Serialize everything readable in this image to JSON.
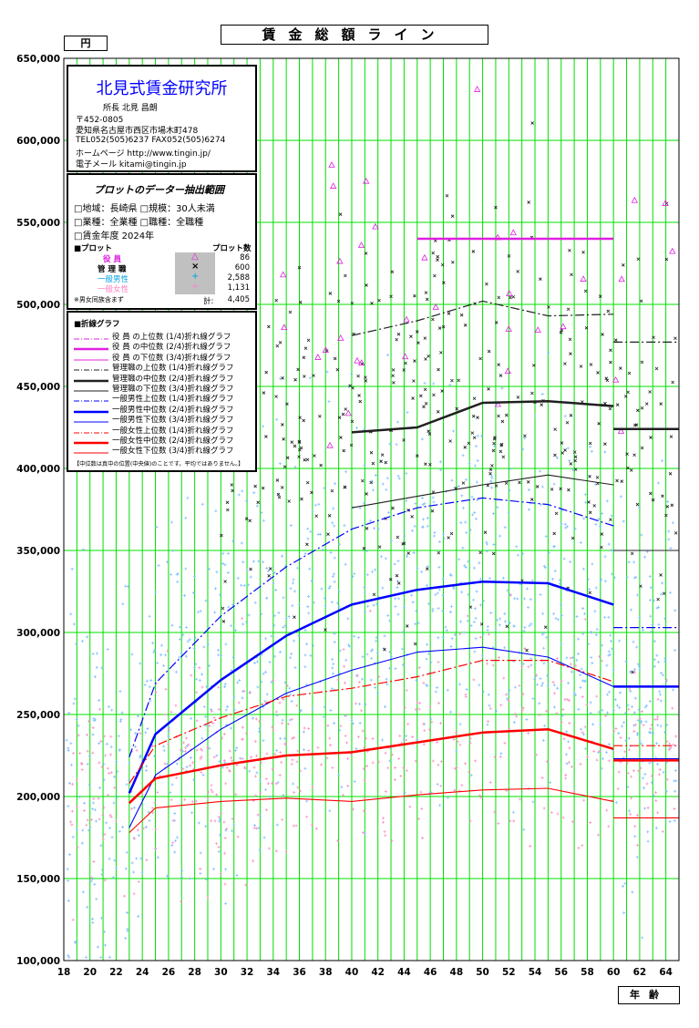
{
  "header": {
    "title": "賃金総額ライン",
    "unit": "円",
    "x_unit": "年齢"
  },
  "org": {
    "name": "北見式賃金研究所",
    "director": "所長 北見 昌朗",
    "postal": "〒452-0805",
    "address": "愛知県名古屋市西区市場木町478",
    "tel_fax": "TEL052(505)6237 FAX052(505)6274",
    "homepage": "ホームページ http://www.tingin.jp/",
    "email": "電子メール kitami@tingin.jp"
  },
  "extract": {
    "heading": "プロットのデーター抽出範囲",
    "line1": "□地域：長崎県 □規模：30人未満",
    "line2": "□業種：全業種 □職種：全職種",
    "line3": "□賃金年度 2024年",
    "plot_label": "■プロット",
    "plot_count_label": "プロット数",
    "rows": [
      {
        "label": "役 員",
        "count": "86",
        "color": "#e020e0",
        "symbol": "△"
      },
      {
        "label": "管 理 職",
        "count": "600",
        "color": "#000000",
        "symbol": "×"
      },
      {
        "label": "一般男性",
        "count": "2,588",
        "color": "#00a0e0",
        "symbol": "+"
      },
      {
        "label": "一般女性",
        "count": "1,131",
        "color": "#ff80c0",
        "symbol": "+"
      }
    ],
    "note": "※男女同族含まず",
    "total_label": "計:",
    "total": "4,405"
  },
  "legend": {
    "heading": "■折線グラフ",
    "items": [
      {
        "label": "役 員 の上位数 (1/4)折れ線グラフ",
        "color": "#e020e0",
        "dash": "6 2 1 2",
        "width": 1
      },
      {
        "label": "役 員 の中位数 (2/4)折れ線グラフ",
        "color": "#e020e0",
        "dash": "",
        "width": 2.5
      },
      {
        "label": "役 員 の下位数 (3/4)折れ線グラフ",
        "color": "#e020e0",
        "dash": "",
        "width": 1
      },
      {
        "label": "管理職の上位数 (1/4)折れ線グラフ",
        "color": "#202020",
        "dash": "6 2 1 2",
        "width": 1
      },
      {
        "label": "管理職の中位数 (2/4)折れ線グラフ",
        "color": "#202020",
        "dash": "",
        "width": 2.5
      },
      {
        "label": "管理職の下位数 (3/4)折れ線グラフ",
        "color": "#202020",
        "dash": "",
        "width": 1
      },
      {
        "label": "一般男性上位数 (1/4)折れ線グラフ",
        "color": "#0000ff",
        "dash": "6 2 1 2",
        "width": 1
      },
      {
        "label": "一般男性中位数 (2/4)折れ線グラフ",
        "color": "#0000ff",
        "dash": "",
        "width": 2.5
      },
      {
        "label": "一般男性下位数 (3/4)折れ線グラフ",
        "color": "#0000ff",
        "dash": "",
        "width": 1
      },
      {
        "label": "一般女性上位数 (1/4)折れ線グラフ",
        "color": "#ff0000",
        "dash": "6 2 1 2",
        "width": 1
      },
      {
        "label": "一般女性中位数 (2/4)折れ線グラフ",
        "color": "#ff0000",
        "dash": "",
        "width": 2.5
      },
      {
        "label": "一般女性下位数 (3/4)折れ線グラフ",
        "color": "#ff0000",
        "dash": "",
        "width": 1
      }
    ],
    "footnote": "【中位数は真中の位置(中央値)のことです。平均ではありません。】"
  },
  "chart_data": {
    "type": "line",
    "title": "賃金総額ライン",
    "xlabel": "年齢",
    "ylabel": "円",
    "xlim": [
      18,
      65
    ],
    "ylim": [
      100000,
      650000
    ],
    "grid": true,
    "x_ticks": [
      18,
      20,
      22,
      24,
      26,
      28,
      30,
      32,
      34,
      36,
      38,
      40,
      42,
      44,
      46,
      48,
      50,
      52,
      54,
      56,
      58,
      60,
      62,
      64
    ],
    "y_ticks": [
      100000,
      150000,
      200000,
      250000,
      300000,
      350000,
      400000,
      450000,
      500000,
      550000,
      600000,
      650000
    ],
    "colors": {
      "grid": "#00e000",
      "officer": "#e020e0",
      "manager": "#202020",
      "male": "#0000ff",
      "female": "#ff0000"
    },
    "series": [
      {
        "group": "officer",
        "quartile": "Q2",
        "x": [
          45,
          60
        ],
        "y": [
          540000,
          540000
        ],
        "tail": null
      },
      {
        "group": "manager",
        "quartile": "Q1",
        "x": [
          40,
          45,
          50,
          55,
          60
        ],
        "y": [
          481000,
          490000,
          502000,
          493000,
          494000
        ],
        "tail": 477000
      },
      {
        "group": "manager",
        "quartile": "Q2",
        "x": [
          40,
          45,
          50,
          55,
          60
        ],
        "y": [
          422000,
          425000,
          440000,
          441000,
          438000
        ],
        "tail": 424000
      },
      {
        "group": "manager",
        "quartile": "Q3",
        "x": [
          40,
          45,
          50,
          55,
          60
        ],
        "y": [
          376000,
          383000,
          390000,
          396000,
          390000
        ],
        "tail": 350000
      },
      {
        "group": "male",
        "quartile": "Q1",
        "x": [
          23,
          25,
          30,
          35,
          40,
          45,
          50,
          55,
          60
        ],
        "y": [
          224000,
          269000,
          310000,
          340000,
          363000,
          376000,
          382000,
          378000,
          365000
        ],
        "tail": 303000
      },
      {
        "group": "male",
        "quartile": "Q2",
        "x": [
          23,
          25,
          30,
          35,
          40,
          45,
          50,
          55,
          60
        ],
        "y": [
          202000,
          238000,
          271000,
          298000,
          317000,
          326000,
          331000,
          330000,
          317000
        ],
        "tail": 267000
      },
      {
        "group": "male",
        "quartile": "Q3",
        "x": [
          23,
          25,
          30,
          35,
          40,
          45,
          50,
          55,
          60
        ],
        "y": [
          181000,
          213000,
          241000,
          263000,
          277000,
          288000,
          291000,
          285000,
          267000
        ],
        "tail": 223000
      },
      {
        "group": "female",
        "quartile": "Q1",
        "x": [
          23,
          25,
          30,
          35,
          40,
          45,
          50,
          55,
          60
        ],
        "y": [
          208000,
          231000,
          248000,
          261000,
          266000,
          273000,
          283000,
          283000,
          270000
        ],
        "tail": 231000
      },
      {
        "group": "female",
        "quartile": "Q2",
        "x": [
          23,
          25,
          30,
          35,
          40,
          45,
          50,
          55,
          60
        ],
        "y": [
          196000,
          211000,
          219000,
          225000,
          227000,
          233000,
          239000,
          241000,
          229000
        ],
        "tail": 222000
      },
      {
        "group": "female",
        "quartile": "Q3",
        "x": [
          23,
          25,
          30,
          35,
          40,
          45,
          50,
          55,
          60
        ],
        "y": [
          178000,
          193000,
          197000,
          199000,
          197000,
          201000,
          204000,
          205000,
          197000
        ],
        "tail": 187000
      }
    ],
    "scatter_counts": {
      "officer": 86,
      "manager": 600,
      "male": 2588,
      "female": 1131
    }
  }
}
